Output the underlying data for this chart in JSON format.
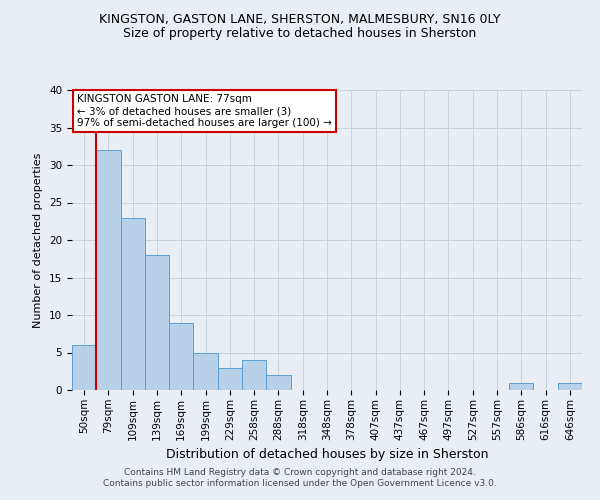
{
  "title": "KINGSTON, GASTON LANE, SHERSTON, MALMESBURY, SN16 0LY",
  "subtitle": "Size of property relative to detached houses in Sherston",
  "xlabel": "Distribution of detached houses by size in Sherston",
  "ylabel": "Number of detached properties",
  "bar_values": [
    6,
    32,
    23,
    18,
    9,
    5,
    3,
    4,
    2,
    0,
    0,
    0,
    0,
    0,
    0,
    0,
    0,
    0,
    1,
    0,
    1
  ],
  "bin_labels": [
    "50sqm",
    "79sqm",
    "109sqm",
    "139sqm",
    "169sqm",
    "199sqm",
    "229sqm",
    "258sqm",
    "288sqm",
    "318sqm",
    "348sqm",
    "378sqm",
    "407sqm",
    "437sqm",
    "467sqm",
    "497sqm",
    "527sqm",
    "557sqm",
    "586sqm",
    "616sqm",
    "646sqm"
  ],
  "bar_color": "#b8d0e8",
  "bar_edge_color": "#5a9fd4",
  "annotation_text": "KINGSTON GASTON LANE: 77sqm\n← 3% of detached houses are smaller (3)\n97% of semi-detached houses are larger (100) →",
  "annotation_box_color": "#ffffff",
  "annotation_box_edge": "#cc0000",
  "ylim": [
    0,
    40
  ],
  "yticks": [
    0,
    5,
    10,
    15,
    20,
    25,
    30,
    35,
    40
  ],
  "footer_text": "Contains HM Land Registry data © Crown copyright and database right 2024.\nContains public sector information licensed under the Open Government Licence v3.0.",
  "bg_color": "#e8eef4",
  "plot_bg_color": "#e8eef4",
  "grid_color": "#c8d4dc",
  "title_fontsize": 9,
  "subtitle_fontsize": 9,
  "xlabel_fontsize": 9,
  "ylabel_fontsize": 8,
  "tick_fontsize": 7.5,
  "footer_fontsize": 6.5,
  "annot_fontsize": 7.5
}
